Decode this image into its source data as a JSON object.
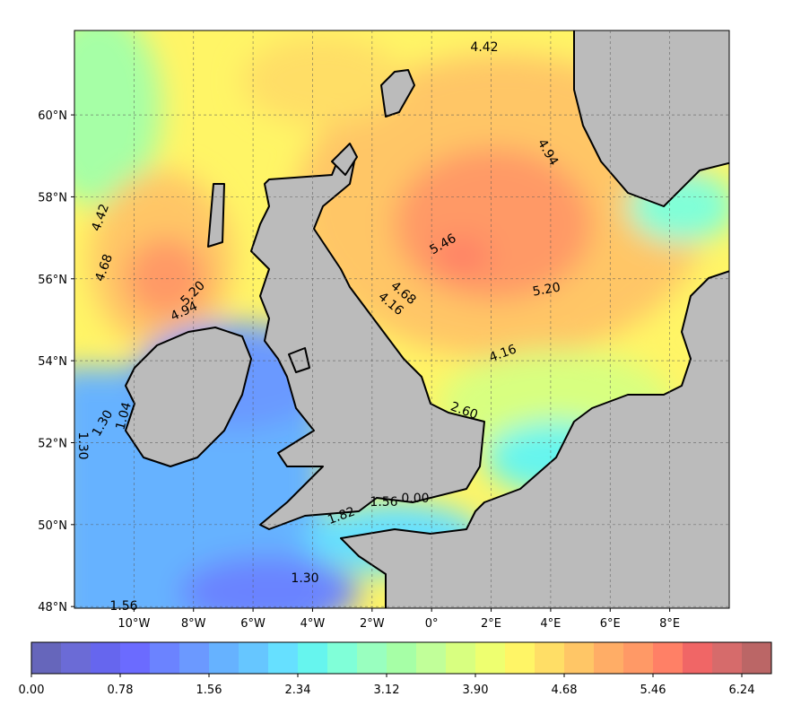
{
  "map": {
    "lon_lim": [
      -12,
      10
    ],
    "lat_lim": [
      47.96,
      62.06
    ],
    "lon_ticks": [
      {
        "value": -10,
        "label": "10°W"
      },
      {
        "value": -8,
        "label": "8°W"
      },
      {
        "value": -6,
        "label": "6°W"
      },
      {
        "value": -4,
        "label": "4°W"
      },
      {
        "value": -2,
        "label": "2°W"
      },
      {
        "value": 0,
        "label": "0°"
      },
      {
        "value": 2,
        "label": "2°E"
      },
      {
        "value": 4,
        "label": "4°E"
      },
      {
        "value": 6,
        "label": "6°E"
      },
      {
        "value": 8,
        "label": "8°E"
      }
    ],
    "lat_ticks": [
      {
        "value": 48,
        "label": "48°N"
      },
      {
        "value": 50,
        "label": "50°N"
      },
      {
        "value": 52,
        "label": "52°N"
      },
      {
        "value": 54,
        "label": "54°N"
      },
      {
        "value": 56,
        "label": "56°N"
      },
      {
        "value": 58,
        "label": "58°N"
      },
      {
        "value": 60,
        "label": "60°N"
      }
    ],
    "grid": true,
    "contour_labels": [
      "4.42",
      "4.94",
      "5.46",
      "5.20",
      "4.68",
      "4.16",
      "4.16",
      "5.20",
      "4.94",
      "4.68",
      "4.42",
      "1.30",
      "1.04",
      "1.30",
      "1.56",
      "1.30",
      "1.82",
      "2.60",
      "0.00",
      "1.56"
    ],
    "colorbar": {
      "lim": [
        0,
        6.5
      ],
      "ticks": [
        {
          "value": 0,
          "label": "0.00"
        },
        {
          "value": 0.78,
          "label": "0.78"
        },
        {
          "value": 1.56,
          "label": "1.56"
        },
        {
          "value": 2.34,
          "label": "2.34"
        },
        {
          "value": 3.12,
          "label": "3.12"
        },
        {
          "value": 3.9,
          "label": "3.90"
        },
        {
          "value": 4.68,
          "label": "4.68"
        },
        {
          "value": 5.46,
          "label": "5.46"
        },
        {
          "value": 6.24,
          "label": "6.24"
        }
      ],
      "colors": [
        "#6666bb",
        "#6b6bd6",
        "#6666ee",
        "#6b6bff",
        "#6b83ff",
        "#6b99ff",
        "#66b2ff",
        "#66c6ff",
        "#66e0ff",
        "#66f5ee",
        "#80ffd8",
        "#99ffbf",
        "#a6ffa6",
        "#c1ff99",
        "#d8ff80",
        "#eeff70",
        "#fff566",
        "#ffde66",
        "#ffc666",
        "#ffad66",
        "#ff9966",
        "#ff8066",
        "#f06666",
        "#d66b6b",
        "#bb6666"
      ]
    }
  }
}
